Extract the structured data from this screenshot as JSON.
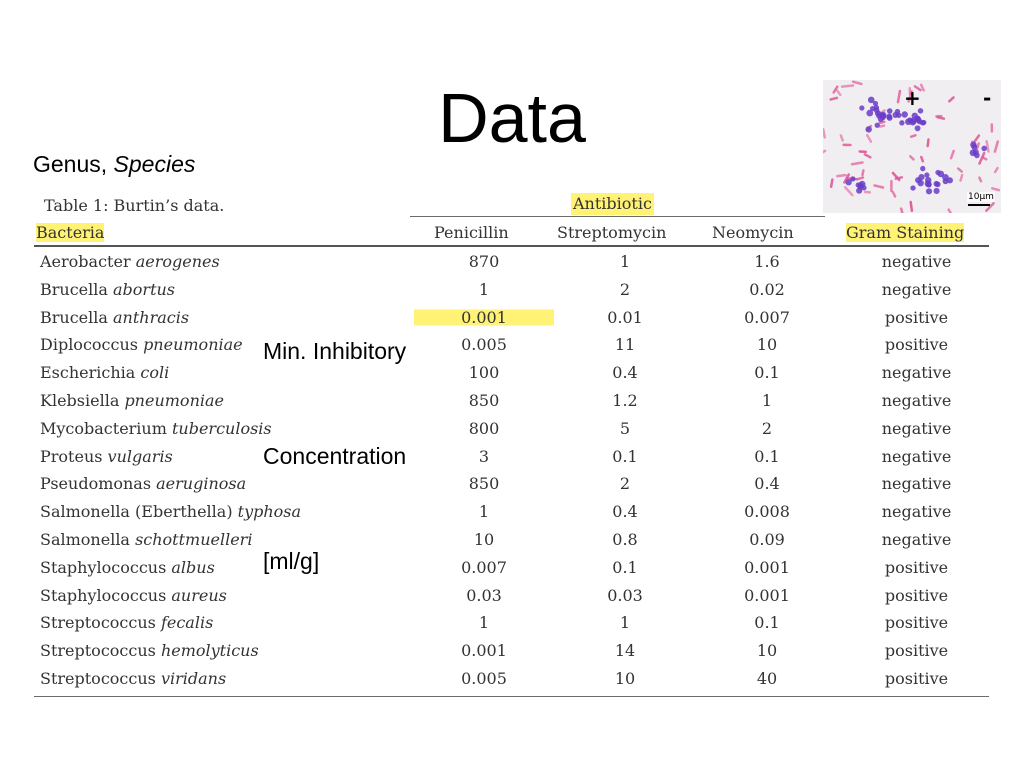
{
  "slide": {
    "title": "Data",
    "genus_label_genus": "Genus, ",
    "genus_label_species": "Species",
    "mic_label_lines": [
      "Min. Inhibitory",
      "Concentration",
      "[ml/g]"
    ]
  },
  "micrograph": {
    "plus_label": "+",
    "minus_label": "-",
    "scale_label": "10μm",
    "colors": {
      "gram_positive": "#6a3cc8",
      "gram_negative": "#e0589a",
      "background": "#f1eef1"
    }
  },
  "table": {
    "caption": "Table 1: Burtin’s data.",
    "group_header": "Antibiotic",
    "headers": {
      "bacteria": "Bacteria",
      "penicillin": "Penicillin",
      "streptomycin": "Streptomycin",
      "neomycin": "Neomycin",
      "gram": "Gram Staining"
    },
    "highlight_color": "#fff275",
    "rows": [
      {
        "genus": "Aerobacter ",
        "species": "aerogenes",
        "penicillin": "870",
        "streptomycin": "1",
        "neomycin": "1.6",
        "gram": "negative"
      },
      {
        "genus": "Brucella ",
        "species": "abortus",
        "penicillin": "1",
        "streptomycin": "2",
        "neomycin": "0.02",
        "gram": "negative"
      },
      {
        "genus": "Brucella ",
        "species": "anthracis",
        "penicillin": "0.001",
        "streptomycin": "0.01",
        "neomycin": "0.007",
        "gram": "positive"
      },
      {
        "genus": "Diplococcus ",
        "species": "pneumoniae",
        "penicillin": "0.005",
        "streptomycin": "11",
        "neomycin": "10",
        "gram": "positive"
      },
      {
        "genus": "Escherichia ",
        "species": "coli",
        "penicillin": "100",
        "streptomycin": "0.4",
        "neomycin": "0.1",
        "gram": "negative"
      },
      {
        "genus": "Klebsiella ",
        "species": "pneumoniae",
        "penicillin": "850",
        "streptomycin": "1.2",
        "neomycin": "1",
        "gram": "negative"
      },
      {
        "genus": "Mycobacterium ",
        "species": "tuberculosis",
        "penicillin": "800",
        "streptomycin": "5",
        "neomycin": "2",
        "gram": "negative"
      },
      {
        "genus": "Proteus ",
        "species": "vulgaris",
        "penicillin": "3",
        "streptomycin": "0.1",
        "neomycin": "0.1",
        "gram": "negative"
      },
      {
        "genus": "Pseudomonas ",
        "species": "aeruginosa",
        "penicillin": "850",
        "streptomycin": "2",
        "neomycin": "0.4",
        "gram": "negative"
      },
      {
        "genus": "Salmonella (Eberthella) ",
        "species": "typhosa",
        "penicillin": "1",
        "streptomycin": "0.4",
        "neomycin": "0.008",
        "gram": "negative"
      },
      {
        "genus": "Salmonella ",
        "species": "schottmuelleri",
        "penicillin": "10",
        "streptomycin": "0.8",
        "neomycin": "0.09",
        "gram": "negative"
      },
      {
        "genus": "Staphylococcus ",
        "species": "albus",
        "penicillin": "0.007",
        "streptomycin": "0.1",
        "neomycin": "0.001",
        "gram": "positive"
      },
      {
        "genus": "Staphylococcus ",
        "species": "aureus",
        "penicillin": "0.03",
        "streptomycin": "0.03",
        "neomycin": "0.001",
        "gram": "positive"
      },
      {
        "genus": "Streptococcus ",
        "species": "fecalis",
        "penicillin": "1",
        "streptomycin": "1",
        "neomycin": "0.1",
        "gram": "positive"
      },
      {
        "genus": "Streptococcus ",
        "species": "hemolyticus",
        "penicillin": "0.001",
        "streptomycin": "14",
        "neomycin": "10",
        "gram": "positive"
      },
      {
        "genus": "Streptococcus ",
        "species": "viridans",
        "penicillin": "0.005",
        "streptomycin": "10",
        "neomycin": "40",
        "gram": "positive"
      }
    ]
  }
}
